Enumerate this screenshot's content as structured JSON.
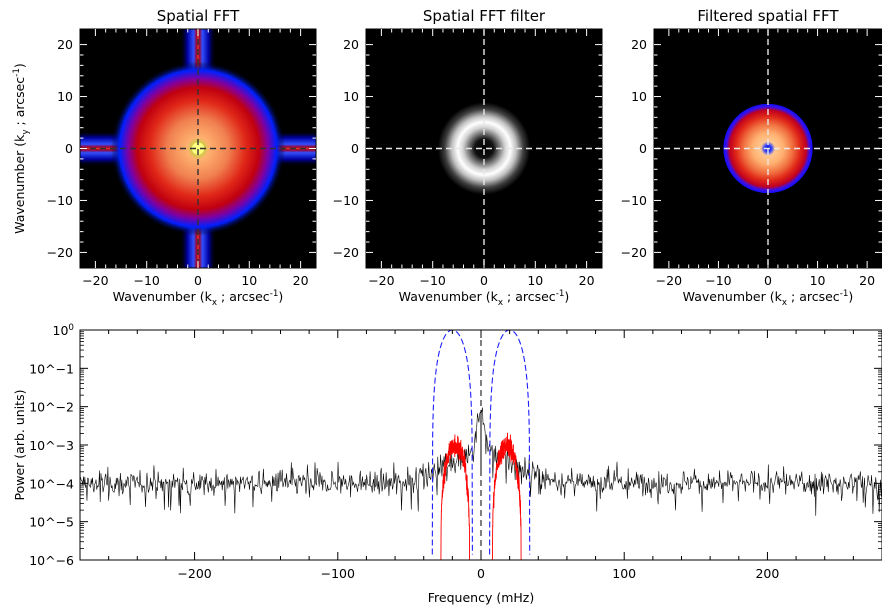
{
  "chart_data": [
    {
      "type": "heatmap",
      "title": "Spatial FFT",
      "xlabel": "Wavenumber (k_x ; arcsec^-1)",
      "ylabel": "Wavenumber (k_y ; arcsec^-1)",
      "xlim": [
        -23,
        23
      ],
      "ylim": [
        -23,
        23
      ],
      "xticks": [
        -20,
        -10,
        0,
        10,
        20
      ],
      "yticks": [
        -20,
        -10,
        0,
        10,
        20
      ],
      "colormap": [
        "#000000",
        "#0000ff",
        "#ff0000",
        "#ffc080",
        "#ffff80"
      ]
    },
    {
      "type": "heatmap",
      "title": "Spatial FFT filter",
      "xlabel": "Wavenumber (k_x ; arcsec^-1)",
      "ylabel": "",
      "xlim": [
        -23,
        23
      ],
      "ylim": [
        -23,
        23
      ],
      "xticks": [
        -20,
        -10,
        0,
        10,
        20
      ],
      "yticks": [
        -20,
        -10,
        0,
        10,
        20
      ],
      "filter_ring": {
        "center_k": 5,
        "outer_k": 9
      },
      "colormap": [
        "#000000",
        "#ffffff"
      ]
    },
    {
      "type": "heatmap",
      "title": "Filtered spatial FFT",
      "xlabel": "Wavenumber (k_x ; arcsec^-1)",
      "ylabel": "",
      "xlim": [
        -23,
        23
      ],
      "ylim": [
        -23,
        23
      ],
      "xticks": [
        -20,
        -10,
        0,
        10,
        20
      ],
      "yticks": [
        -20,
        -10,
        0,
        10,
        20
      ],
      "colormap": [
        "#000000",
        "#0000ff",
        "#ff0000",
        "#ffc080",
        "#ffff80"
      ]
    },
    {
      "type": "line",
      "title": "",
      "xlabel": "Frequency (mHz)",
      "ylabel": "Power (arb. units)",
      "xlim": [
        -280,
        280
      ],
      "ylim": [
        1e-06,
        1
      ],
      "yscale": "log",
      "xticks": [
        -200,
        -100,
        0,
        100,
        200
      ],
      "yticks": [
        "10^-6",
        "10^-5",
        "10^-4",
        "10^-3",
        "10^-2",
        "10^-1",
        "10^0"
      ],
      "series": [
        {
          "color": "#000000",
          "style": "solid",
          "description_level": 0.0001,
          "peak_x": 0,
          "peak_y": 0.008
        },
        {
          "color": "#ff0000",
          "style": "solid",
          "bands": [
            [
              -28,
              -8
            ],
            [
              8,
              28
            ]
          ],
          "peak_y": 0.001
        },
        {
          "color": "#0000ff",
          "style": "dashed",
          "bands": [
            [
              -34,
              -6
            ],
            [
              6,
              34
            ]
          ],
          "peak_y": 1
        }
      ]
    }
  ]
}
